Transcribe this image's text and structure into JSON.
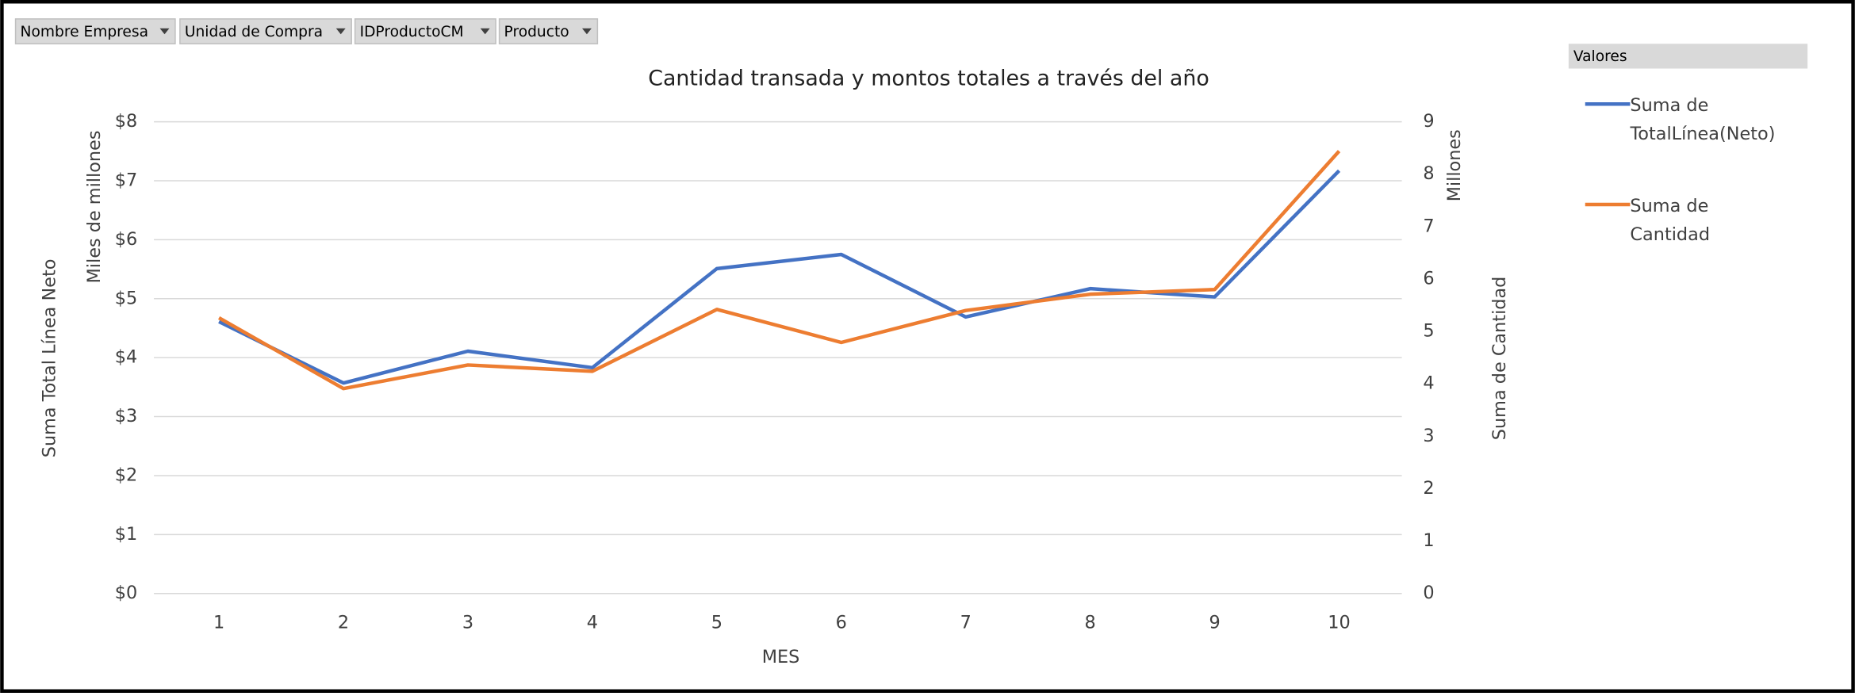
{
  "filters": [
    "Nombre Empresa",
    "Unidad de Compra",
    "IDProductoCM",
    "Producto"
  ],
  "chart_data": {
    "type": "line",
    "title": "Cantidad transada y montos totales a través del año",
    "x_label": "MES",
    "y_label": "Suma Total Línea Neto",
    "y_unit_label": "Miles de millones",
    "y2_label": "Suma de Cantidad",
    "y2_unit_label": "Millones",
    "legend_title": "Valores",
    "legend": "right",
    "grid": true,
    "categories": [
      "1",
      "2",
      "3",
      "4",
      "5",
      "6",
      "7",
      "8",
      "9",
      "10"
    ],
    "ylim": [
      0,
      8
    ],
    "yticks": [
      {
        "value": 0,
        "label": "$0"
      },
      {
        "value": 1,
        "label": "$1"
      },
      {
        "value": 2,
        "label": "$2"
      },
      {
        "value": 3,
        "label": "$3"
      },
      {
        "value": 4,
        "label": "$4"
      },
      {
        "value": 5,
        "label": "$5"
      },
      {
        "value": 6,
        "label": "$6"
      },
      {
        "value": 7,
        "label": "$7"
      },
      {
        "value": 8,
        "label": "$8"
      }
    ],
    "y2lim": [
      0,
      9
    ],
    "y2ticks": [
      0,
      1,
      2,
      3,
      4,
      5,
      6,
      7,
      8,
      9
    ],
    "series": [
      {
        "name": "Suma de TotalLínea(Neto)",
        "color": "#4472c4",
        "values": [
          4.61,
          3.57,
          4.11,
          3.83,
          5.51,
          5.75,
          4.69,
          5.17,
          5.03,
          7.17
        ]
      },
      {
        "name": "Suma de Cantidad",
        "color": "#ed7d31",
        "axis": "y2",
        "values": [
          5.26,
          3.91,
          4.36,
          4.24,
          5.42,
          4.79,
          5.4,
          5.71,
          5.8,
          8.44
        ]
      }
    ]
  }
}
